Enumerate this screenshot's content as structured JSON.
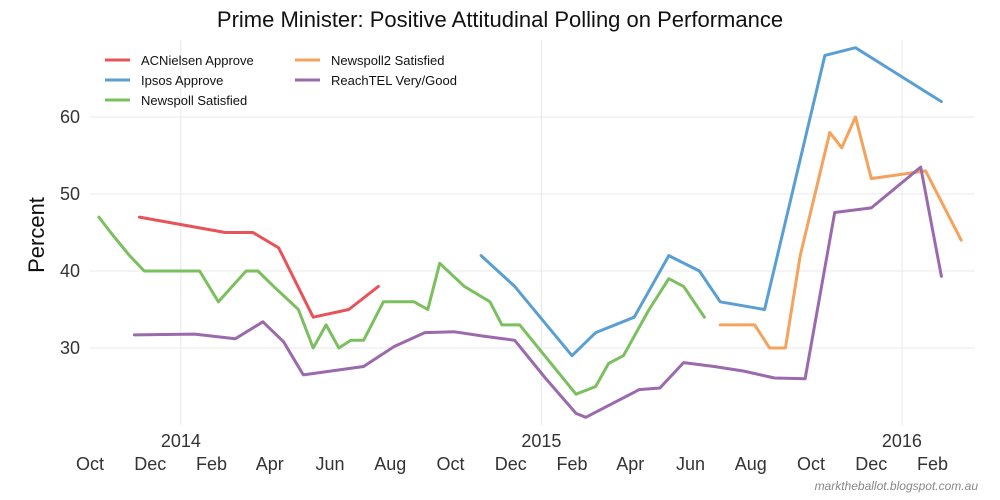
{
  "chart_data": {
    "type": "line",
    "title": "Prime Minister: Positive Attitudinal Polling on Performance",
    "xlabel": "",
    "ylabel": "Percent",
    "ylim": [
      20,
      70
    ],
    "yticks": [
      30,
      40,
      50,
      60
    ],
    "xlim": [
      "2013-10-01",
      "2016-03-15"
    ],
    "xticks": [
      {
        "date": "2013-10-01",
        "label": "Oct"
      },
      {
        "date": "2013-12-01",
        "label": "Dec"
      },
      {
        "date": "2014-02-01",
        "label": "Feb"
      },
      {
        "date": "2014-04-01",
        "label": "Apr"
      },
      {
        "date": "2014-06-01",
        "label": "Jun"
      },
      {
        "date": "2014-08-01",
        "label": "Aug"
      },
      {
        "date": "2014-10-01",
        "label": "Oct"
      },
      {
        "date": "2014-12-01",
        "label": "Dec"
      },
      {
        "date": "2015-02-01",
        "label": "Feb"
      },
      {
        "date": "2015-04-01",
        "label": "Apr"
      },
      {
        "date": "2015-06-01",
        "label": "Jun"
      },
      {
        "date": "2015-08-01",
        "label": "Aug"
      },
      {
        "date": "2015-10-01",
        "label": "Oct"
      },
      {
        "date": "2015-12-01",
        "label": "Dec"
      },
      {
        "date": "2016-02-01",
        "label": "Feb"
      }
    ],
    "year_ticks": [
      {
        "date": "2014-01-01",
        "label": "2014"
      },
      {
        "date": "2015-01-01",
        "label": "2015"
      },
      {
        "date": "2016-01-01",
        "label": "2016"
      }
    ],
    "grid": true,
    "legend_position": "top-left",
    "series": [
      {
        "name": "ACNielsen Approve",
        "color": "#e8535a",
        "points": [
          [
            "2013-11-20",
            47
          ],
          [
            "2014-02-15",
            45
          ],
          [
            "2014-03-15",
            45
          ],
          [
            "2014-04-10",
            43
          ],
          [
            "2014-05-15",
            34
          ],
          [
            "2014-06-20",
            35
          ],
          [
            "2014-07-20",
            38
          ]
        ]
      },
      {
        "name": "Ipsos Approve",
        "color": "#5a9fd4",
        "points": [
          [
            "2014-11-01",
            42
          ],
          [
            "2014-12-05",
            38
          ],
          [
            "2015-02-01",
            29
          ],
          [
            "2015-02-25",
            32
          ],
          [
            "2015-04-05",
            34
          ],
          [
            "2015-05-10",
            42
          ],
          [
            "2015-06-10",
            40
          ],
          [
            "2015-07-01",
            36
          ],
          [
            "2015-08-15",
            35
          ],
          [
            "2015-10-15",
            68
          ],
          [
            "2015-11-15",
            69
          ],
          [
            "2016-02-10",
            62
          ]
        ]
      },
      {
        "name": "Newspoll Satisfied",
        "color": "#7bbf5f",
        "points": [
          [
            "2013-10-10",
            47
          ],
          [
            "2013-10-22",
            45
          ],
          [
            "2013-11-10",
            42
          ],
          [
            "2013-11-25",
            40
          ],
          [
            "2014-01-05",
            40
          ],
          [
            "2014-01-20",
            40
          ],
          [
            "2014-02-08",
            36
          ],
          [
            "2014-03-08",
            40
          ],
          [
            "2014-03-20",
            40
          ],
          [
            "2014-04-05",
            38
          ],
          [
            "2014-04-30",
            35
          ],
          [
            "2014-05-15",
            30
          ],
          [
            "2014-05-28",
            33
          ],
          [
            "2014-06-10",
            30
          ],
          [
            "2014-06-22",
            31
          ],
          [
            "2014-07-05",
            31
          ],
          [
            "2014-07-25",
            36
          ],
          [
            "2014-08-25",
            36
          ],
          [
            "2014-09-08",
            35
          ],
          [
            "2014-09-20",
            41
          ],
          [
            "2014-10-15",
            38
          ],
          [
            "2014-11-10",
            36
          ],
          [
            "2014-11-22",
            33
          ],
          [
            "2014-12-10",
            33
          ],
          [
            "2015-02-05",
            24
          ],
          [
            "2015-02-25",
            25
          ],
          [
            "2015-03-10",
            28
          ],
          [
            "2015-03-25",
            29
          ],
          [
            "2015-04-20",
            35
          ],
          [
            "2015-05-10",
            39
          ],
          [
            "2015-05-25",
            38
          ],
          [
            "2015-06-15",
            34
          ]
        ]
      },
      {
        "name": "Newspoll2 Satisfied",
        "color": "#f5a25d",
        "points": [
          [
            "2015-07-01",
            33
          ],
          [
            "2015-07-25",
            33
          ],
          [
            "2015-08-05",
            33
          ],
          [
            "2015-08-20",
            30
          ],
          [
            "2015-09-05",
            30
          ],
          [
            "2015-09-20",
            42
          ],
          [
            "2015-10-05",
            50
          ],
          [
            "2015-10-20",
            58
          ],
          [
            "2015-11-01",
            56
          ],
          [
            "2015-11-15",
            60
          ],
          [
            "2015-12-01",
            52
          ],
          [
            "2016-01-25",
            53
          ],
          [
            "2016-02-10",
            49
          ],
          [
            "2016-03-01",
            44
          ]
        ]
      },
      {
        "name": "ReachTEL Very/Good",
        "color": "#9b6aad",
        "points": [
          [
            "2013-11-15",
            31.7
          ],
          [
            "2014-01-15",
            31.8
          ],
          [
            "2014-02-25",
            31.2
          ],
          [
            "2014-03-25",
            33.4
          ],
          [
            "2014-04-15",
            30.8
          ],
          [
            "2014-05-05",
            26.5
          ],
          [
            "2014-07-05",
            27.6
          ],
          [
            "2014-08-05",
            30.2
          ],
          [
            "2014-09-05",
            32.0
          ],
          [
            "2014-10-05",
            32.1
          ],
          [
            "2014-11-05",
            31.5
          ],
          [
            "2014-12-05",
            31.0
          ],
          [
            "2015-01-05",
            26.1
          ],
          [
            "2015-02-05",
            21.5
          ],
          [
            "2015-02-15",
            21.0
          ],
          [
            "2015-04-10",
            24.6
          ],
          [
            "2015-05-01",
            24.8
          ],
          [
            "2015-05-25",
            28.1
          ],
          [
            "2015-06-25",
            27.6
          ],
          [
            "2015-07-25",
            27.0
          ],
          [
            "2015-08-25",
            26.1
          ],
          [
            "2015-09-25",
            26.0
          ],
          [
            "2015-10-25",
            47.6
          ],
          [
            "2015-12-01",
            48.2
          ],
          [
            "2016-01-20",
            53.5
          ],
          [
            "2016-02-10",
            39.3
          ]
        ]
      }
    ]
  },
  "credit": "marktheballot.blogspot.com.au"
}
